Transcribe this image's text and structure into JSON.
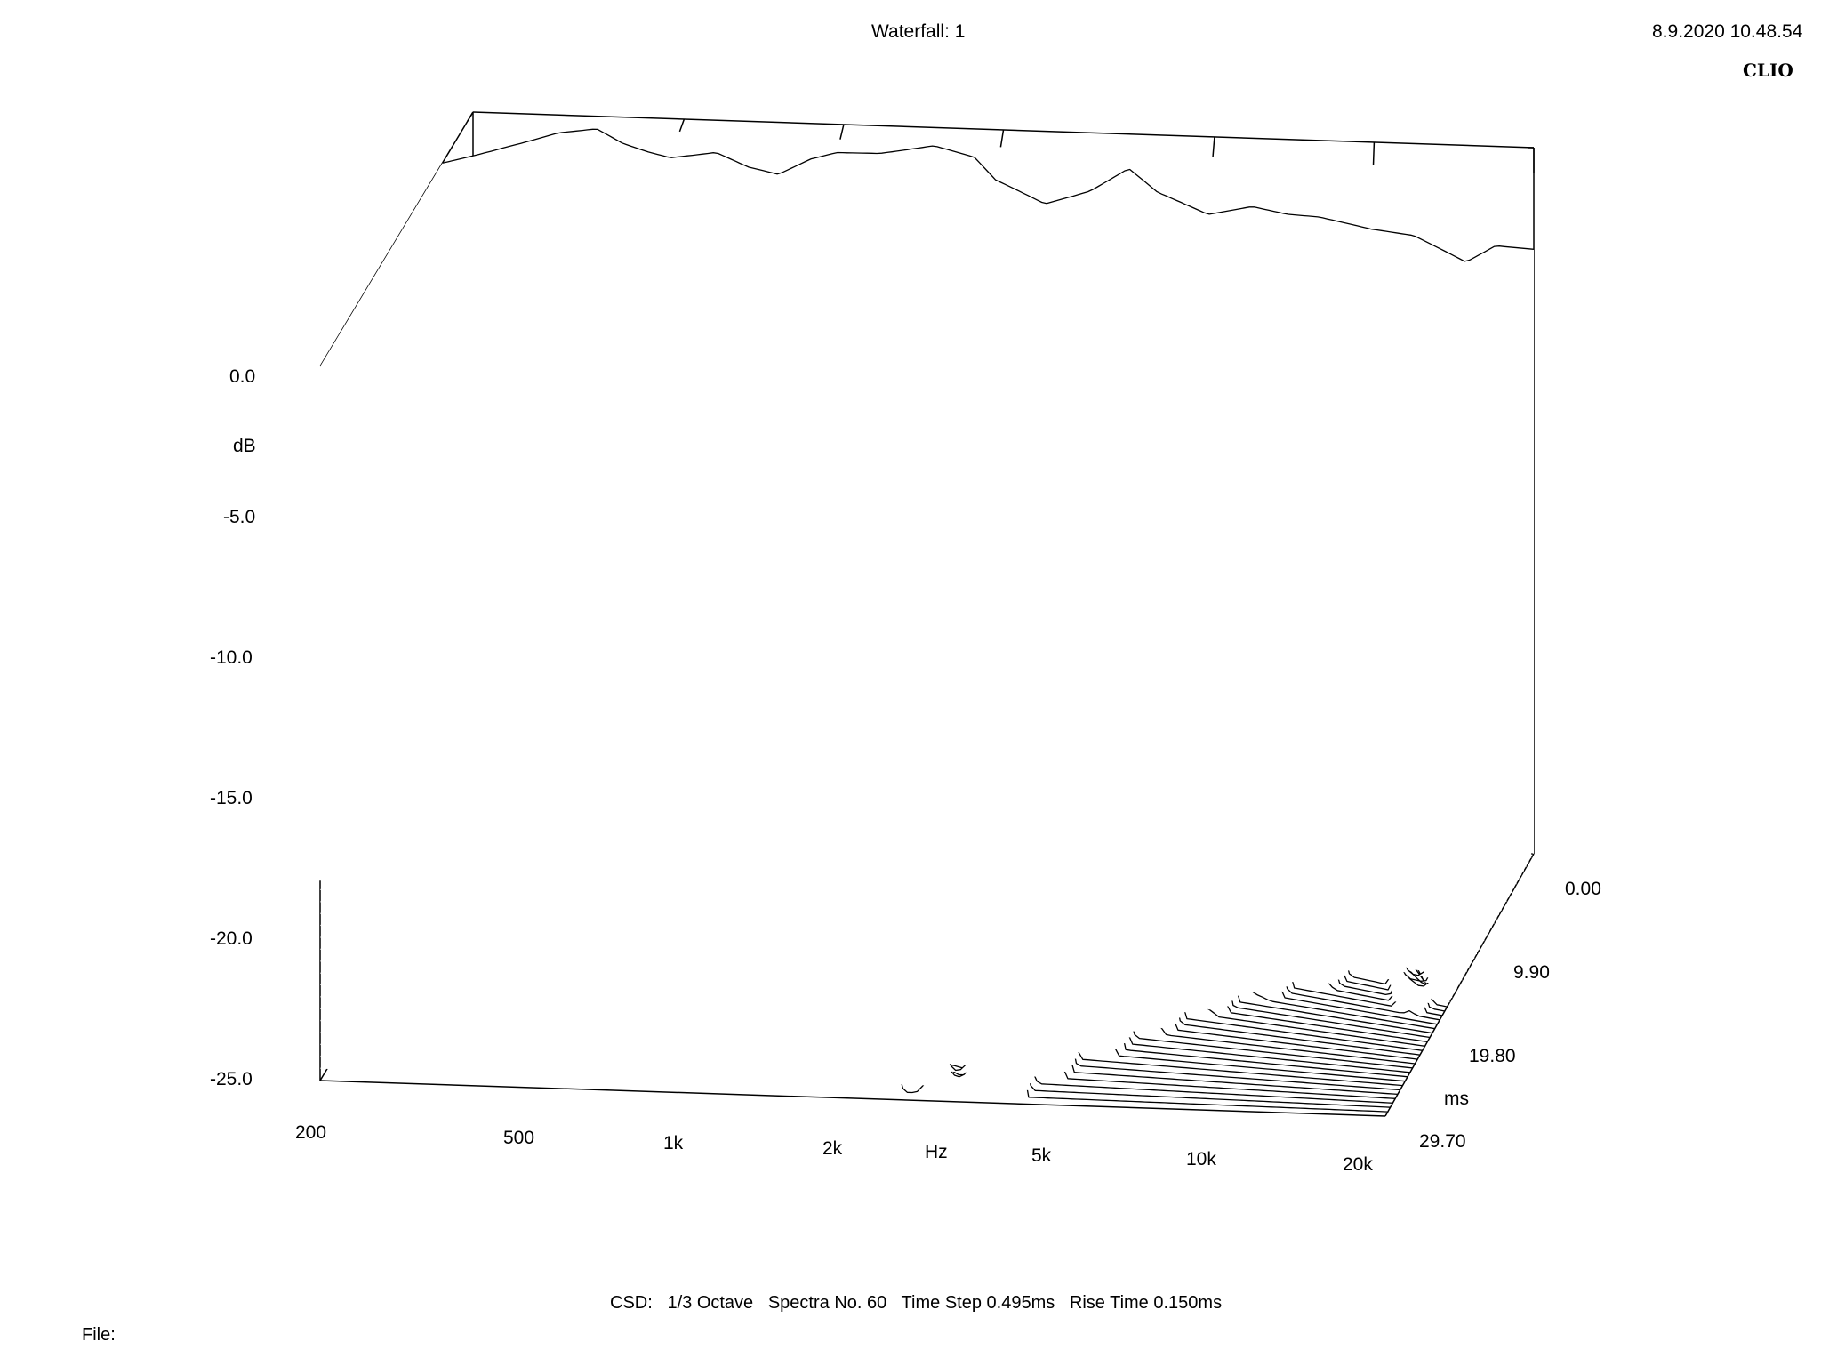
{
  "header": {
    "title": "Waterfall: 1",
    "timestamp": "8.9.2020 10.48.54",
    "brand": "CLIO"
  },
  "footer": {
    "settings": "CSD:   1/3 Octave   Spectra No. 60   Time Step 0.495ms   Rise Time 0.150ms",
    "file_label": "File:"
  },
  "chart_data": {
    "type": "waterfall",
    "title": "Waterfall: 1",
    "analysis": "CSD",
    "smoothing": "1/3 Octave",
    "spectra_count": 60,
    "time_step_ms": 0.495,
    "rise_time_ms": 0.15,
    "x_axis": {
      "label": "Hz",
      "scale": "log",
      "range": [
        200,
        20000
      ],
      "ticks": [
        200,
        500,
        1000,
        2000,
        5000,
        10000,
        20000
      ],
      "tick_labels": [
        "200",
        "500",
        "1k",
        "2k",
        "5k",
        "10k",
        "20k"
      ]
    },
    "y_axis": {
      "label": "dB",
      "range": [
        -25,
        0
      ],
      "ticks": [
        0,
        -5,
        -10,
        -15,
        -20,
        -25
      ],
      "tick_labels": [
        "0.0",
        "-5.0",
        "-10.0",
        "-15.0",
        "-20.0",
        "-25.0"
      ]
    },
    "z_axis": {
      "label": "ms",
      "range": [
        0,
        29.7
      ],
      "ticks": [
        0,
        9.9,
        19.8,
        29.7
      ],
      "tick_labels": [
        "0.00",
        "9.90",
        "19.80",
        "29.70"
      ]
    },
    "first_spectrum": {
      "name": "0.00 ms",
      "x": [
        200,
        250,
        300,
        350,
        400,
        450,
        500,
        600,
        700,
        800,
        900,
        1000,
        1200,
        1500,
        1800,
        2000,
        2500,
        3000,
        3500,
        4000,
        5000,
        6000,
        7000,
        8000,
        10000,
        12000,
        15000,
        17000,
        20000
      ],
      "y": [
        -5.0,
        -3.0,
        -1.5,
        -1.0,
        -2.0,
        -2.5,
        -2.8,
        -2.2,
        -3.0,
        -3.3,
        -2.2,
        -1.7,
        -1.6,
        -1.0,
        -1.5,
        -2.6,
        -3.6,
        -2.8,
        -1.6,
        -2.6,
        -3.4,
        -2.9,
        -3.1,
        -3.1,
        -3.4,
        -3.5,
        -4.3,
        -3.6,
        -3.6
      ]
    },
    "grid": false,
    "legend": "none"
  }
}
